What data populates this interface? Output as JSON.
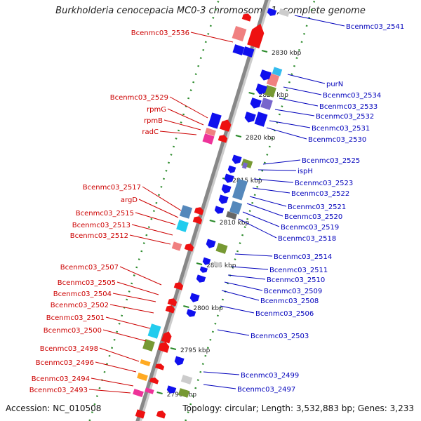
{
  "title": "Burkholderia cenocepacia MC0-3 chromosome 1, complete genome",
  "footer": {
    "accession": "Accession: NC_010508",
    "topology": "Topology: circular; Length: 3,532,883 bp; Genes: 3,233"
  },
  "colors": {
    "left_label": "#cc0000",
    "right_label": "#0000bb",
    "axis": "#888888",
    "tick": "#2a8a2a",
    "strand_neg": "#ff0000",
    "strand_pos": "#0000ff"
  },
  "scale_ticks": [
    {
      "label": "2830 kbp"
    },
    {
      "label": "2825 kbp"
    },
    {
      "label": "2820 kbp"
    },
    {
      "label": "2815 kbp"
    },
    {
      "label": "2810 kbp"
    },
    {
      "label": "2805 kbp"
    },
    {
      "label": "2800 kbp"
    },
    {
      "label": "2795 kbp"
    },
    {
      "label": "2790 kbp"
    }
  ],
  "left_labels": [
    "Bcenmc03_2536",
    "Bcenmc03_2529",
    "rpmG",
    "rpmB",
    "radC",
    "Bcenmc03_2517",
    "argD",
    "Bcenmc03_2515",
    "Bcenmc03_2513",
    "Bcenmc03_2512",
    "Bcenmc03_2507",
    "Bcenmc03_2505",
    "Bcenmc03_2504",
    "Bcenmc03_2502",
    "Bcenmc03_2501",
    "Bcenmc03_2500",
    "Bcenmc03_2498",
    "Bcenmc03_2496",
    "Bcenmc03_2494",
    "Bcenmc03_2493"
  ],
  "right_labels": [
    "Bcenmc03_2541",
    "purN",
    "Bcenmc03_2534",
    "Bcenmc03_2533",
    "Bcenmc03_2532",
    "Bcenmc03_2531",
    "Bcenmc03_2530",
    "Bcenmc03_2525",
    "ispH",
    "Bcenmc03_2523",
    "Bcenmc03_2522",
    "Bcenmc03_2521",
    "Bcenmc03_2520",
    "Bcenmc03_2519",
    "Bcenmc03_2518",
    "Bcenmc03_2514",
    "Bcenmc03_2511",
    "Bcenmc03_2510",
    "Bcenmc03_2509",
    "Bcenmc03_2508",
    "Bcenmc03_2506",
    "Bcenmc03_2503",
    "Bcenmc03_2499",
    "Bcenmc03_2497"
  ]
}
